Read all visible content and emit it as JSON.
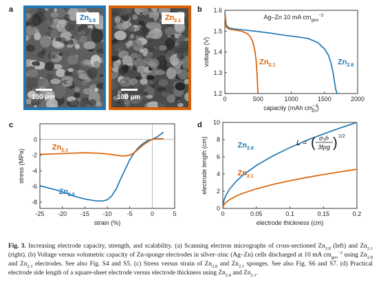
{
  "colors": {
    "zn28": "#1f77b4",
    "zn21": "#d95f02",
    "axis": "#222222",
    "zero_line": "#9a9a9a"
  },
  "panel_labels": {
    "a": "a",
    "b": "b",
    "c": "c",
    "d": "d"
  },
  "sem": {
    "left": {
      "label": "Zn",
      "sub": "2.8",
      "scale": "100 µm"
    },
    "right": {
      "label": "Zn",
      "sub": "2.1",
      "scale": "100 µm"
    }
  },
  "chart_data": [
    {
      "id": "b",
      "type": "line",
      "annotation": {
        "text": "Ag–Zn 10 mA cm",
        "sub": "geo",
        "sup": "−2"
      },
      "xlabel": {
        "text": "capacity (mAh cm",
        "sup": "−3",
        "sub": "Zn",
        "close": ")"
      },
      "ylabel": "voltage (V)",
      "xlim": [
        0,
        2000
      ],
      "ylim": [
        1.2,
        1.6
      ],
      "xticks": [
        0,
        500,
        1000,
        1500,
        2000
      ],
      "yticks": [
        1.2,
        1.3,
        1.4,
        1.5,
        1.6
      ],
      "series": [
        {
          "name": "Zn",
          "sub": "2.8",
          "color": "#1f77b4",
          "x": [
            0,
            20,
            60,
            150,
            300,
            500,
            700,
            900,
            1100,
            1250,
            1400,
            1500,
            1560,
            1600,
            1630,
            1650,
            1670,
            1690,
            1700
          ],
          "y": [
            1.59,
            1.53,
            1.515,
            1.51,
            1.505,
            1.498,
            1.49,
            1.48,
            1.472,
            1.465,
            1.445,
            1.415,
            1.385,
            1.345,
            1.3,
            1.26,
            1.22,
            1.2,
            1.2
          ]
        },
        {
          "name": "Zn",
          "sub": "2.1",
          "color": "#d95f02",
          "x": [
            0,
            20,
            60,
            150,
            250,
            330,
            380,
            420,
            450,
            470,
            480,
            490,
            495,
            500
          ],
          "y": [
            1.58,
            1.52,
            1.51,
            1.505,
            1.5,
            1.49,
            1.475,
            1.45,
            1.41,
            1.36,
            1.32,
            1.26,
            1.22,
            1.2
          ]
        }
      ],
      "series_labels": [
        {
          "name": "Zn",
          "sub": "2.1",
          "x": 640,
          "y": 1.34
        },
        {
          "name": "Zn",
          "sub": "2.8",
          "x": 1820,
          "y": 1.34
        }
      ]
    },
    {
      "id": "c",
      "type": "line",
      "xlabel": "strain (%)",
      "ylabel": "stress (MPa)",
      "xlim": [
        -25,
        5
      ],
      "ylim": [
        -8.8,
        2
      ],
      "xticks": [
        -25,
        -20,
        -15,
        -10,
        -5,
        0,
        5
      ],
      "yticks": [
        -8,
        -6,
        -4,
        -2,
        0
      ],
      "series": [
        {
          "name": "Zn",
          "sub": "2.8",
          "color": "#1f77b4",
          "x": [
            -25,
            -23,
            -21,
            -19,
            -17,
            -15,
            -13,
            -12,
            -11,
            -10,
            -9,
            -8,
            -7,
            -6,
            -5,
            -4,
            -3,
            -2,
            -1,
            0,
            1,
            2,
            2.5
          ],
          "y": [
            -5.9,
            -6.2,
            -6.5,
            -6.9,
            -7.3,
            -7.6,
            -7.8,
            -7.85,
            -7.85,
            -7.7,
            -7.2,
            -6.3,
            -5.0,
            -3.8,
            -2.6,
            -1.7,
            -1.0,
            -0.5,
            -0.15,
            0,
            0.3,
            0.7,
            0.95
          ]
        },
        {
          "name": "Zn",
          "sub": "2.1",
          "color": "#d95f02",
          "x": [
            -25,
            -22,
            -20,
            -18,
            -15,
            -12,
            -10,
            -8,
            -7,
            -6,
            -5,
            -4,
            -3,
            -2,
            -1,
            0,
            1,
            2,
            2.5
          ],
          "y": [
            -1.9,
            -1.85,
            -1.8,
            -1.75,
            -1.7,
            -1.75,
            -1.85,
            -2.0,
            -2.1,
            -2.1,
            -2.0,
            -1.7,
            -1.2,
            -0.7,
            -0.3,
            0,
            0.1,
            0.1,
            0.1
          ]
        }
      ],
      "series_labels": [
        {
          "name": "Zn",
          "sub": "2.1",
          "x": -20.5,
          "y": -1.3
        },
        {
          "name": "Zn",
          "sub": "2.8",
          "x": -19,
          "y": -6.95
        }
      ]
    },
    {
      "id": "d",
      "type": "line",
      "formula": "L = (σ_T h / 3 f ρ g)^(1/2)",
      "xlabel": "electrode thickness (cm)",
      "ylabel": "electrode length (cm)",
      "xlim": [
        0,
        0.2
      ],
      "ylim": [
        0,
        10
      ],
      "xticks": [
        0,
        0.05,
        0.1,
        0.15,
        0.2
      ],
      "yticks": [
        0,
        2,
        4,
        6,
        8,
        10
      ],
      "series": [
        {
          "name": "Zn",
          "sub": "2.8",
          "color": "#1f77b4",
          "x": [
            0,
            0.001,
            0.0025,
            0.005,
            0.01,
            0.02,
            0.03,
            0.05,
            0.075,
            0.1,
            0.125,
            0.15,
            0.175,
            0.2
          ],
          "y": [
            0,
            0.71,
            1.12,
            1.58,
            2.24,
            3.16,
            3.87,
            5.0,
            6.12,
            7.07,
            7.91,
            8.66,
            9.35,
            10.0
          ]
        },
        {
          "name": "Zn",
          "sub": "2.1",
          "color": "#d95f02",
          "x": [
            0,
            0.001,
            0.0025,
            0.005,
            0.01,
            0.02,
            0.03,
            0.05,
            0.075,
            0.1,
            0.125,
            0.15,
            0.175,
            0.2
          ],
          "y": [
            0,
            0.32,
            0.51,
            0.72,
            1.02,
            1.44,
            1.76,
            2.28,
            2.79,
            3.22,
            3.6,
            3.94,
            4.26,
            4.55
          ]
        }
      ],
      "series_labels": [
        {
          "name": "Zn",
          "sub": "2.8",
          "x": 0.034,
          "y": 7.1
        },
        {
          "name": "Zn",
          "sub": "2.1",
          "x": 0.034,
          "y": 3.85
        }
      ]
    }
  ],
  "caption": {
    "fig_label": "Fig. 3.",
    "lead": " Increasing electrode capacity, strength, and scalability. (a) Scanning electron micrographs of cross-sectioned Zn",
    "s1": "2.8",
    "t1": " (left) and Zn",
    "s2": "2.1",
    "t2": " (right). (b) Voltage versus volumetric capacity of Zn-sponge electrodes in silver–zinc (Ag–Zn) cells discharged at 10 mA cm",
    "s3": "geo",
    "sup1": "−2",
    "t3": " using Zn",
    "s4": "2.8",
    "t4": " and Zn",
    "s5": "2.1",
    "t5": " electrodes. See also Fig. S4 and S5. (c) Stress versus strain of Zn",
    "s6": "2.8",
    "t6": " and Zn",
    "s7": "2.1",
    "t7": " sponges. See also Fig. S6 and S7. (d) Practical electrode side length of a square-sheet electrode versus electrode thickness using Zn",
    "s8": "2.8",
    "t8": " and Zn",
    "s9": "2.1",
    "t9": "."
  }
}
